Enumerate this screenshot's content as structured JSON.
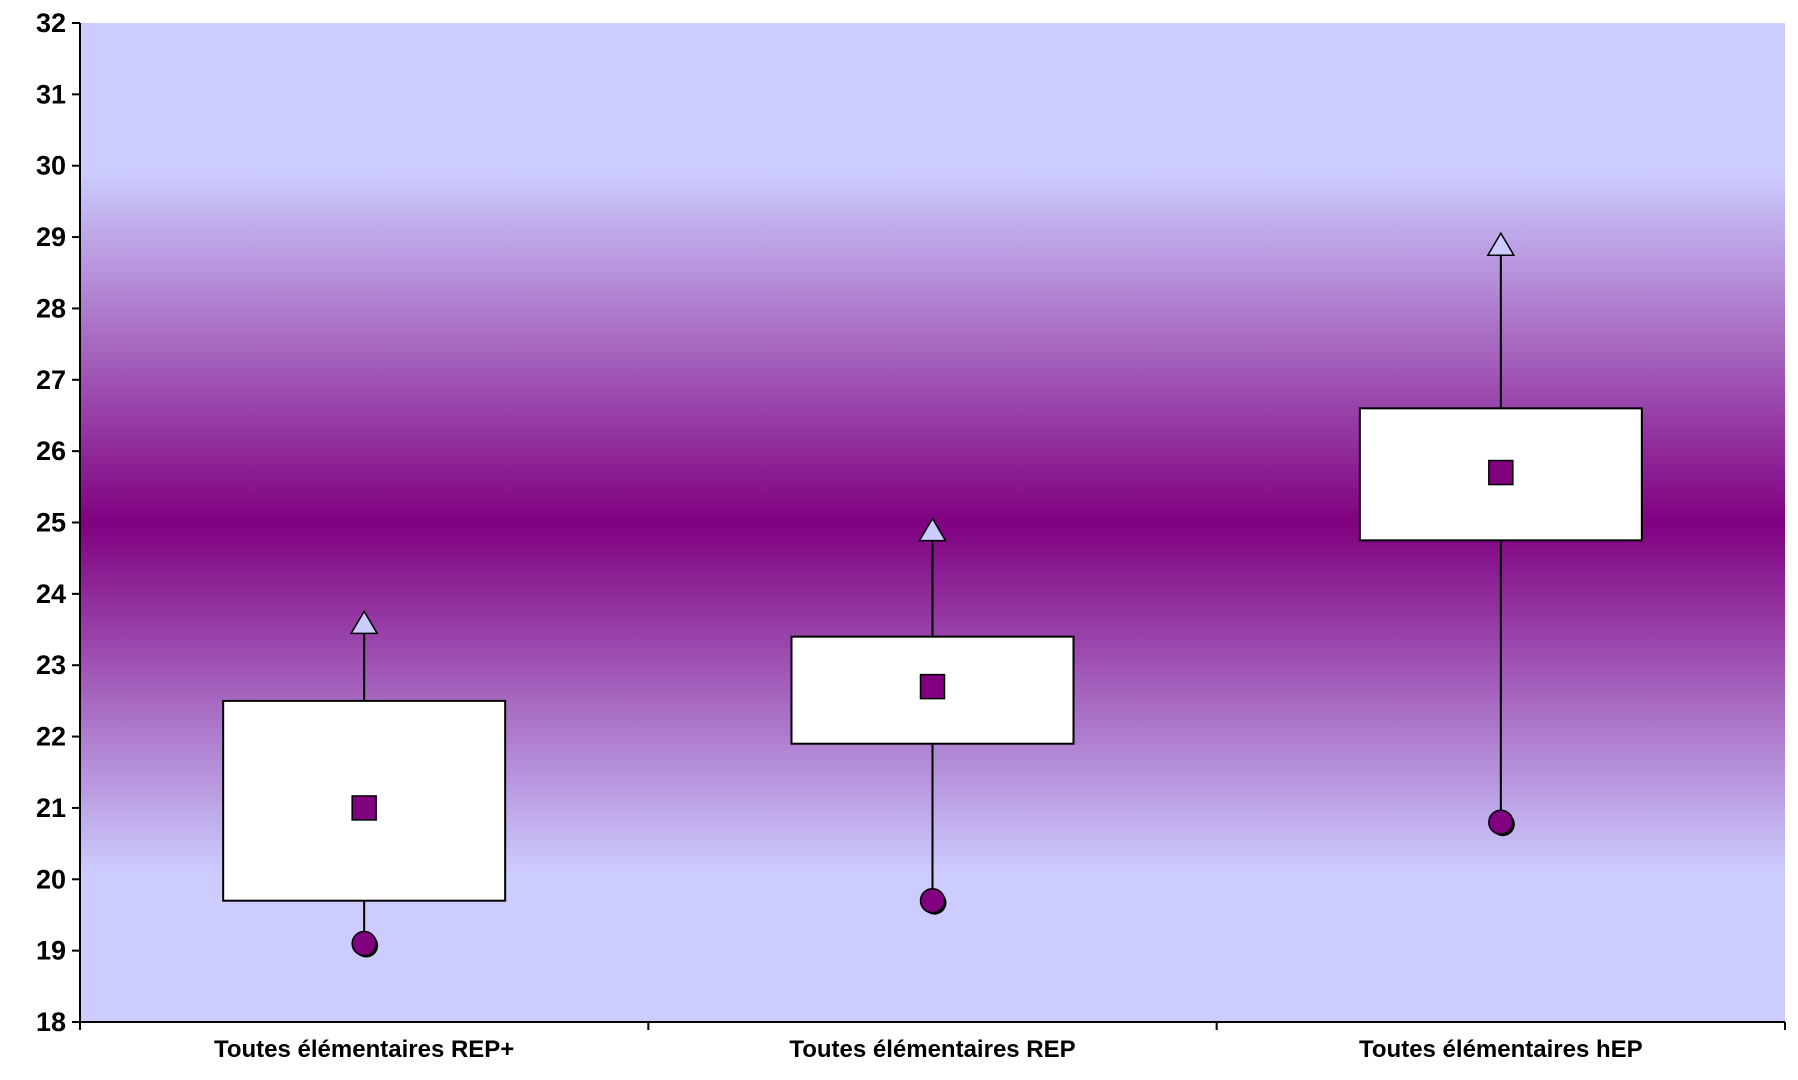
{
  "chart_data": {
    "type": "boxplot",
    "title": "",
    "xlabel": "",
    "ylabel": "",
    "ylim": [
      18,
      32
    ],
    "yticks": [
      18,
      19,
      20,
      21,
      22,
      23,
      24,
      25,
      26,
      27,
      28,
      29,
      30,
      31,
      32
    ],
    "grid": false,
    "legend": "none",
    "background": {
      "type": "vertical-gradient",
      "edge_color": "#CCCCFF",
      "center_color": "#800080",
      "center_value": 25
    },
    "categories": [
      "Toutes élémentaires REP+",
      "Toutes élémentaires REP",
      "Toutes élémentaires hEP"
    ],
    "boxes": [
      {
        "category": "Toutes élémentaires REP+",
        "min": 19.1,
        "q1": 19.7,
        "mean": 21.0,
        "q3": 22.5,
        "max": 23.6
      },
      {
        "category": "Toutes élémentaires REP",
        "min": 19.7,
        "q1": 21.9,
        "mean": 22.7,
        "q3": 23.4,
        "max": 24.9
      },
      {
        "category": "Toutes élémentaires hEP",
        "min": 20.8,
        "q1": 24.75,
        "mean": 25.7,
        "q3": 26.6,
        "max": 28.9
      }
    ],
    "colors": {
      "box_fill": "#FFFFFF",
      "mean_marker": "#800080",
      "min_marker": "#800080",
      "max_marker": "#CCCCFF",
      "axis": "#000000"
    }
  }
}
